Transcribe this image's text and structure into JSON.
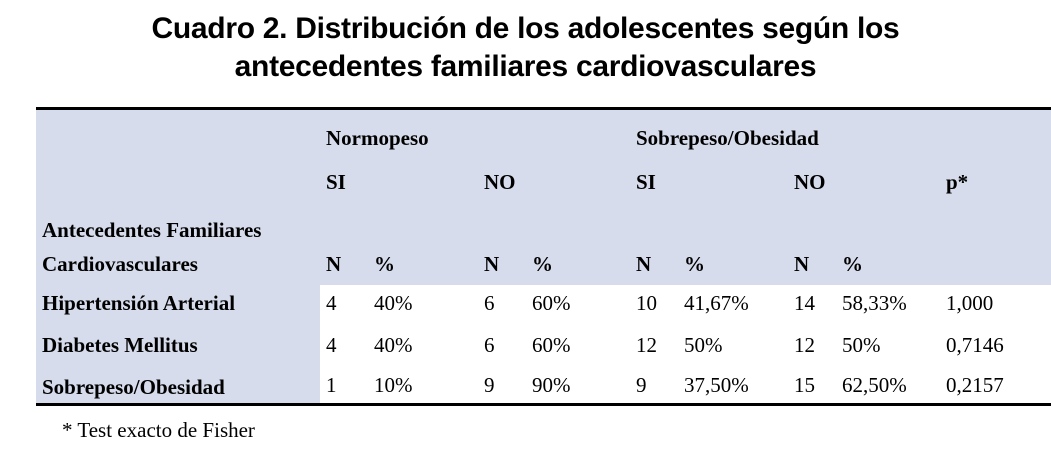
{
  "title": {
    "line1": "Cuadro 2. Distribución de los adolescentes según los",
    "line2": "antecedentes familiares cardiovasculares"
  },
  "table": {
    "group_headers": {
      "normopeso": "Normopeso",
      "sobrepeso": "Sobrepeso/Obesidad"
    },
    "sub_headers": {
      "si1": "SI",
      "no1": "NO",
      "si2": "SI",
      "no2": "NO",
      "p": "p*"
    },
    "row_label_header": {
      "line1": "Antecedentes  Familiares",
      "line2": "Cardiovasculares"
    },
    "measure_headers": [
      "N",
      "%",
      "N",
      "%",
      "N",
      "%",
      "N",
      "%"
    ],
    "rows": [
      {
        "label": "Hipertensión Arterial",
        "values": [
          "4",
          "40%",
          "6",
          "60%",
          "10",
          "41,67%",
          "14",
          "58,33%",
          "1,000"
        ]
      },
      {
        "label": "Diabetes Mellitus",
        "values": [
          "4",
          "40%",
          "6",
          "60%",
          "12",
          "50%",
          "12",
          "50%",
          "0,7146"
        ]
      },
      {
        "label": "Sobrepeso/Obesidad",
        "values": [
          "1",
          "10%",
          "9",
          "90%",
          "9",
          "37,50%",
          "15",
          "62,50%",
          "0,2157"
        ]
      }
    ]
  },
  "footnote": "* Test exacto de Fisher",
  "colors": {
    "header_fill": "#d6dcec",
    "rule": "#000000"
  }
}
